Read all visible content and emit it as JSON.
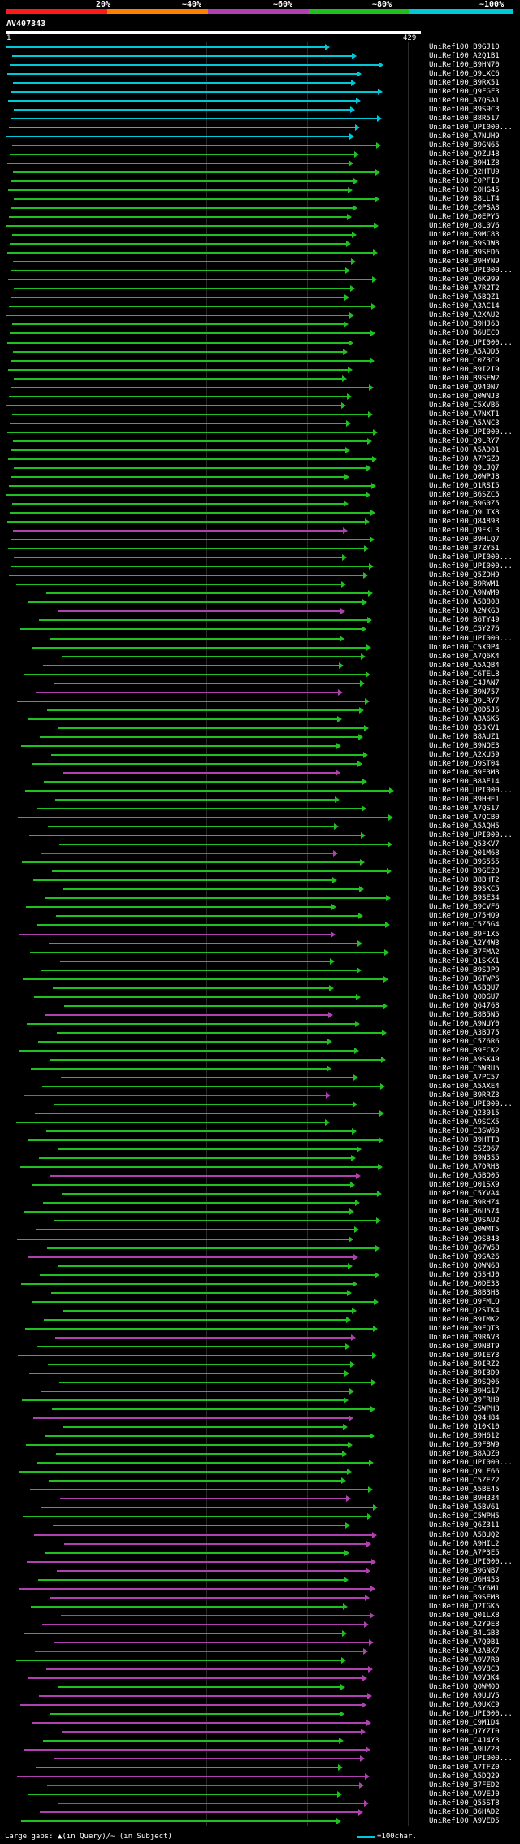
{
  "legend": {
    "pct_labels": [
      "20%",
      "~40%",
      "~60%",
      "~80%",
      "~100%"
    ],
    "colors": [
      "#ff1a1a",
      "#ff8000",
      "#b040b0",
      "#20c020",
      "#00c8d8"
    ]
  },
  "query": {
    "id": "AV407343",
    "start": "1",
    "end": "429"
  },
  "hits": [
    "UniRef100_B9GJ10",
    "UniRef100_A2Q1B1",
    "UniRef100_B9HN70",
    "UniRef100_Q9LXC6",
    "UniRef100_B9RX51",
    "UniRef100_Q9FGF3",
    "UniRef100_A7QSA1",
    "UniRef100_B9S9C3",
    "UniRef100_B8R517",
    "UniRef100_UPI000...",
    "UniRef100_A7NUH9",
    "UniRef100_B9GN65",
    "UniRef100_Q9ZU48",
    "UniRef100_B9H1Z8",
    "UniRef100_Q2HTU9",
    "UniRef100_C0PFI0",
    "UniRef100_C0HG45",
    "UniRef100_B8LLT4",
    "UniRef100_C0PSA8",
    "UniRef100_D0EPY5",
    "UniRef100_Q8L0V6",
    "UniRef100_B9MC83",
    "UniRef100_B9SJW8",
    "UniRef100_B9SFD6",
    "UniRef100_B9HYN9",
    "UniRef100_UPI000...",
    "UniRef100_Q6K999",
    "UniRef100_A7R2T2",
    "UniRef100_A5BQZ1",
    "UniRef100_A3AC14",
    "UniRef100_A2XAU2",
    "UniRef100_B9HJ63",
    "UniRef100_B6UEC0",
    "UniRef100_UPI000...",
    "UniRef100_A5AQD5",
    "UniRef100_C0Z3C9",
    "UniRef100_B9I2I9",
    "UniRef100_B9SFW2",
    "UniRef100_Q940N7",
    "UniRef100_Q0WNJ3",
    "UniRef100_C5XVB6",
    "UniRef100_A7NXT1",
    "UniRef100_A5ANC3",
    "UniRef100_UPI000...",
    "UniRef100_Q9LRY7",
    "UniRef100_A5AD01",
    "UniRef100_A7PGZ0",
    "UniRef100_Q9LJQ7",
    "UniRef100_Q0WPJ8",
    "UniRef100_Q1RSI5",
    "UniRef100_B6SZC5",
    "UniRef100_B9G0Z5",
    "UniRef100_Q9LTX8",
    "UniRef100_Q84893",
    "UniRef100_Q9FKL3",
    "UniRef100_B9HLQ7",
    "UniRef100_B7ZY51",
    "UniRef100_UPI000...",
    "UniRef100_UPI000...",
    "UniRef100_Q5ZDH9",
    "UniRef100_B9RWM1",
    "UniRef100_A9NWM9",
    "UniRef100_A5B808",
    "UniRef100_A2WKG3",
    "UniRef100_B6TY49",
    "UniRef100_C5Y276",
    "UniRef100_UPI000...",
    "UniRef100_C5X0P4",
    "UniRef100_A7Q6K4",
    "UniRef100_A5AQB4",
    "UniRef100_C6TEL8",
    "UniRef100_C4JAN7",
    "UniRef100_B9N757",
    "UniRef100_Q9LRY7",
    "UniRef100_Q0D5J6",
    "UniRef100_A3A6K5",
    "UniRef100_Q53KV1",
    "UniRef100_B8AUZ1",
    "UniRef100_B9NOE3",
    "UniRef100_A2XU59",
    "UniRef100_Q9ST04",
    "UniRef100_B9F3M8",
    "UniRef100_B8AE14",
    "UniRef100_UPI000...",
    "UniRef100_B9HHE1",
    "UniRef100_A7QS17",
    "UniRef100_A7QCB0",
    "UniRef100_A5AQH5",
    "UniRef100_UPI000...",
    "UniRef100_Q53KV7",
    "UniRef100_Q01M68",
    "UniRef100_B9S555",
    "UniRef100_B9GE20",
    "UniRef100_B8BHT2",
    "UniRef100_B9SKC5",
    "UniRef100_B9SE34",
    "UniRef100_B9CVF6",
    "UniRef100_Q75HQ9",
    "UniRef100_C5Z5G4",
    "UniRef100_B9F1X5",
    "UniRef100_A2Y4W3",
    "UniRef100_B7FMA2",
    "UniRef100_Q1SKX1",
    "UniRef100_B9SJP9",
    "UniRef100_B6TWP6",
    "UniRef100_A5BQU7",
    "UniRef100_Q0DGU7",
    "UniRef100_Q64768",
    "UniRef100_B8B5N5",
    "UniRef100_A9NUY0",
    "UniRef100_A3BJ75",
    "UniRef100_C5Z6R6",
    "UniRef100_B9FCK2",
    "UniRef100_A9SX49",
    "UniRef100_C5WRU5",
    "UniRef100_A7PC57",
    "UniRef100_A5AXE4",
    "UniRef100_B9RRZ3",
    "UniRef100_UPI000...",
    "UniRef100_Q23015",
    "UniRef100_A9SCX5",
    "UniRef100_C3SW69",
    "UniRef100_B9HTT3",
    "UniRef100_C5Z067",
    "UniRef100_B9N3S5",
    "UniRef100_A7QRH3",
    "UniRef100_A5BQ05",
    "UniRef100_Q01SX9",
    "UniRef100_C5YVA4",
    "UniRef100_B9RHZ4",
    "UniRef100_B6U574",
    "UniRef100_Q9SAU2",
    "UniRef100_Q0WMT5",
    "UniRef100_Q9S843",
    "UniRef100_Q67W58",
    "UniRef100_Q9SA26",
    "UniRef100_Q0WN68",
    "UniRef100_Q5SHJ0",
    "UniRef100_Q0DE33",
    "UniRef100_B8B3H3",
    "UniRef100_Q9FMLQ",
    "UniRef100_Q2STK4",
    "UniRef100_B9IMK2",
    "UniRef100_B9FQT3",
    "UniRef100_B9RAV3",
    "UniRef100_B9N8T9",
    "UniRef100_B9IEY3",
    "UniRef100_B9IRZ2",
    "UniRef100_B9I3D9",
    "UniRef100_B9SQ06",
    "UniRef100_B9HG17",
    "UniRef100_Q9FRH9",
    "UniRef100_C5WPH8",
    "UniRef100_Q94H84",
    "UniRef100_Q10K10",
    "UniRef100_B9H612",
    "UniRef100_B9F8W9",
    "UniRef100_B8AQZ0",
    "UniRef100_UPI000...",
    "UniRef100_Q9LF66",
    "UniRef100_C5ZEZ2",
    "UniRef100_A5BE45",
    "UniRef100_B9H334",
    "UniRef100_A5BV61",
    "UniRef100_C5WPH5",
    "UniRef100_Q6Z311",
    "UniRef100_A5BUQ2",
    "UniRef100_A9HIL2",
    "UniRef100_A7P3E5",
    "UniRef100_UPI000...",
    "UniRef100_B9GNB7",
    "UniRef100_Q6H453",
    "UniRef100_C5Y6M1",
    "UniRef100_B9SEM8",
    "UniRef100_Q2TGK5",
    "UniRef100_Q01LX8",
    "UniRef100_A2Y9E8",
    "UniRef100_B4LGB3",
    "UniRef100_A7Q0B1",
    "UniRef100_A3A8X7",
    "UniRef100_A9V7R0",
    "UniRef100_A9V8C3",
    "UniRef100_A9V3K4",
    "UniRef100_Q0WM00",
    "UniRef100_A9UUV5",
    "UniRef100_A9UXC9",
    "UniRef100_UPI000...",
    "UniRef100_C9M1D4",
    "UniRef100_Q7YZI0",
    "UniRef100_C4J4Y3",
    "UniRef100_A9UZ28",
    "UniRef100_UPI000...",
    "UniRef100_A7TFZ0",
    "UniRef100_A5DQ29",
    "UniRef100_B7FED2",
    "UniRef100_A9VEJ0",
    "UniRef100_Q55ST8",
    "UniRef100_B6HAD2",
    "UniRef100_A9VED5"
  ],
  "footer": {
    "left_text": "Large gaps: ▲(in Query)/~ (in Subject)",
    "right_text": "=100char."
  }
}
